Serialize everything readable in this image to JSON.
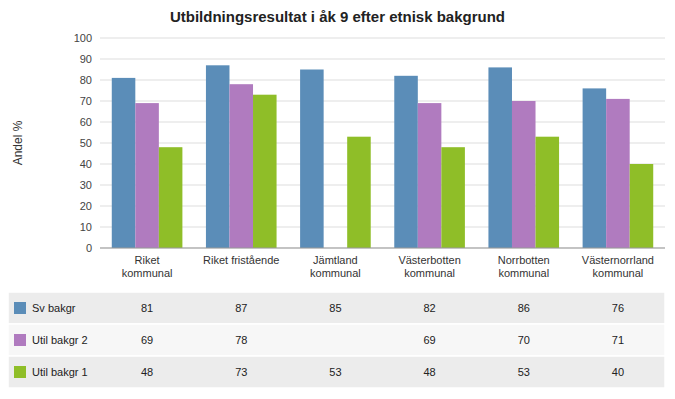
{
  "chart_data": {
    "type": "bar",
    "title": "Utbildningsresultat i åk 9 efter etnisk bakgrund",
    "ylabel": "Andel %",
    "categories": [
      "Riket\nkommunal",
      "Riket fristående",
      "Jämtland\nkommunal",
      "Västerbotten\nkommunal",
      "Norrbotten\nkommunal",
      "Västernorrland\nkommunal"
    ],
    "series": [
      {
        "name": "Sv bakgr",
        "color": "#5b8db8",
        "values": [
          81,
          87,
          85,
          82,
          86,
          76
        ]
      },
      {
        "name": "Util bakgr 2",
        "color": "#b07bbf",
        "values": [
          69,
          78,
          null,
          69,
          70,
          71
        ]
      },
      {
        "name": "Util bakgr 1",
        "color": "#8fbe28",
        "values": [
          48,
          73,
          53,
          48,
          53,
          40
        ]
      }
    ],
    "ylim": [
      0,
      100
    ],
    "yticks": [
      0,
      10,
      20,
      30,
      40,
      50,
      60,
      70,
      80,
      90,
      100
    ],
    "grid": true,
    "data_labels": true
  }
}
